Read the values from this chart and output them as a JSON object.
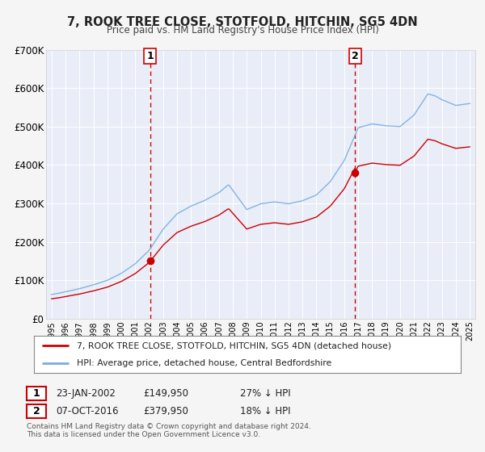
{
  "title": "7, ROOK TREE CLOSE, STOTFOLD, HITCHIN, SG5 4DN",
  "subtitle": "Price paid vs. HM Land Registry's House Price Index (HPI)",
  "bg_color": "#f5f5f5",
  "plot_bg_color": "#e8edf8",
  "grid_color": "#ffffff",
  "ylim": [
    0,
    700000
  ],
  "yticks": [
    0,
    100000,
    200000,
    300000,
    400000,
    500000,
    600000,
    700000
  ],
  "ytick_labels": [
    "£0",
    "£100K",
    "£200K",
    "£300K",
    "£400K",
    "£500K",
    "£600K",
    "£700K"
  ],
  "xlim_start": 1994.6,
  "xlim_end": 2025.4,
  "sale1_x": 2002.056,
  "sale1_y": 149950,
  "sale1_label": "1",
  "sale1_date": "23-JAN-2002",
  "sale1_price": "£149,950",
  "sale1_hpi": "27% ↓ HPI",
  "sale2_x": 2016.769,
  "sale2_y": 379950,
  "sale2_label": "2",
  "sale2_date": "07-OCT-2016",
  "sale2_price": "£379,950",
  "sale2_hpi": "18% ↓ HPI",
  "legend_house": "7, ROOK TREE CLOSE, STOTFOLD, HITCHIN, SG5 4DN (detached house)",
  "legend_hpi": "HPI: Average price, detached house, Central Bedfordshire",
  "footer1": "Contains HM Land Registry data © Crown copyright and database right 2024.",
  "footer2": "This data is licensed under the Open Government Licence v3.0.",
  "house_color": "#cc0000",
  "hpi_color": "#7aaddc",
  "dashed_color": "#cc0000"
}
